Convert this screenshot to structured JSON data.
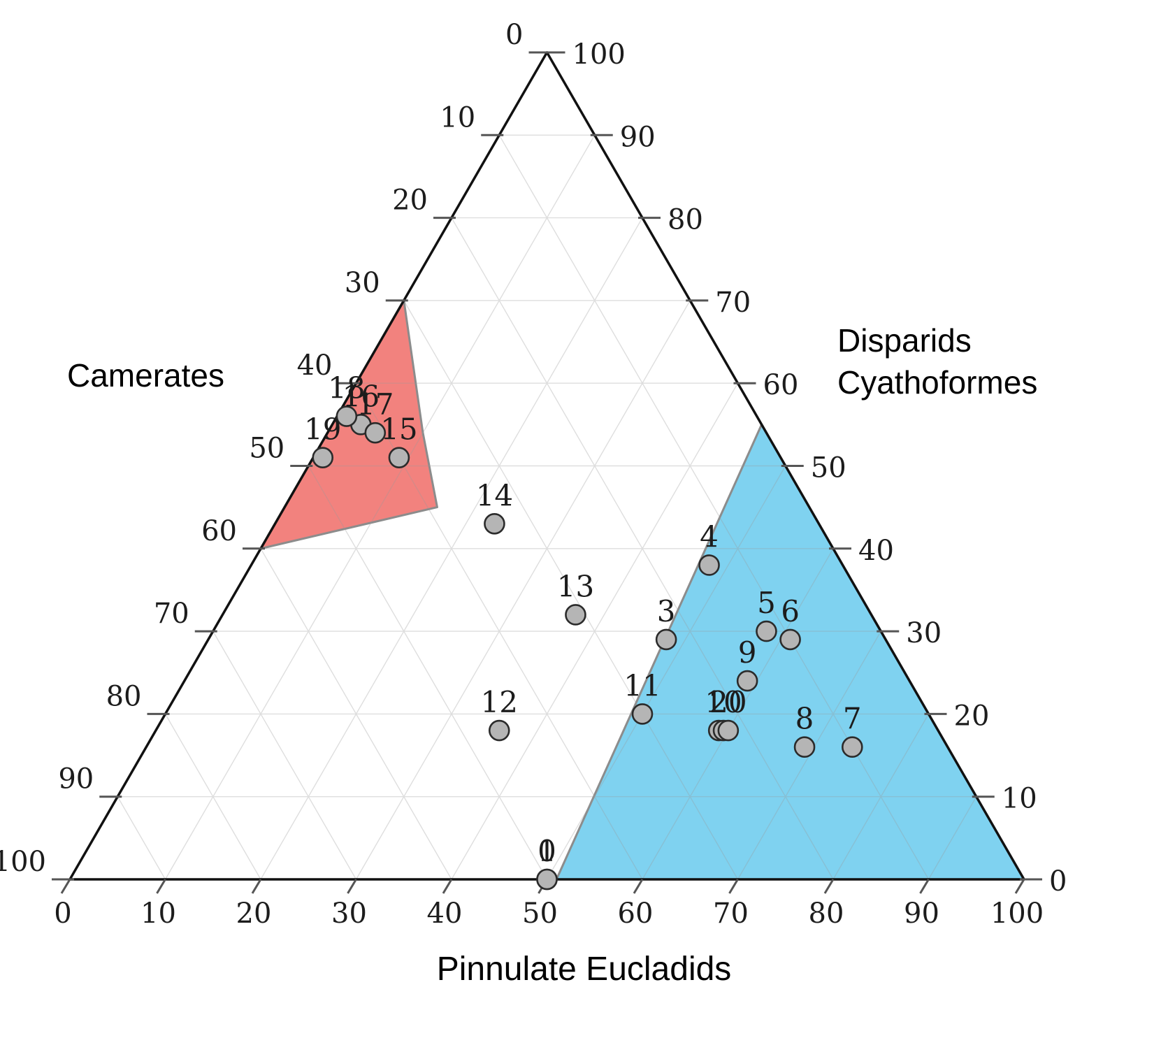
{
  "chart_data": {
    "type": "scatter",
    "variant": "ternary",
    "axes": {
      "left": {
        "label": "Camerates",
        "min": 0,
        "max": 100,
        "tick_step": 10,
        "ticks": [
          0,
          10,
          20,
          30,
          40,
          50,
          60,
          70,
          80,
          90,
          100
        ]
      },
      "right": {
        "label": "Disparids\nCyathoformes",
        "min": 0,
        "max": 100,
        "tick_step": 10,
        "ticks": [
          100,
          90,
          80,
          70,
          60,
          50,
          40,
          30,
          20,
          10,
          0
        ]
      },
      "bottom": {
        "label": "Pinnulate Eucladids",
        "min": 0,
        "max": 100,
        "tick_step": 10,
        "ticks": [
          0,
          10,
          20,
          30,
          40,
          50,
          60,
          70,
          80,
          90,
          100
        ]
      }
    },
    "grid": {
      "show": true,
      "step": 10,
      "color": "#9a9a9a",
      "opacity": 0.32
    },
    "regions": [
      {
        "name": "camerates-region",
        "fill": "#F2827E",
        "stroke": "#8C8C8C",
        "vertices_cdp": [
          [
            30,
            70,
            0
          ],
          [
            36,
            54,
            10
          ],
          [
            39,
            45,
            16
          ],
          [
            60,
            40,
            0
          ]
        ]
      },
      {
        "name": "disparids-region",
        "fill": "#7FD2F0",
        "stroke": "#8C8C8C",
        "vertices_cdp": [
          [
            0,
            55,
            45
          ],
          [
            49,
            0,
            51
          ],
          [
            0,
            0,
            100
          ]
        ]
      }
    ],
    "points": [
      {
        "label": "0",
        "camerates": 50,
        "disparids": 0,
        "pinnulate": 50
      },
      {
        "label": "1",
        "camerates": 50,
        "disparids": 0,
        "pinnulate": 50
      },
      {
        "label": "2",
        "camerates": 23,
        "disparids": 18,
        "pinnulate": 59
      },
      {
        "label": "3",
        "camerates": 23,
        "disparids": 29,
        "pinnulate": 48
      },
      {
        "label": "4",
        "camerates": 14,
        "disparids": 38,
        "pinnulate": 48
      },
      {
        "label": "5",
        "camerates": 12,
        "disparids": 30,
        "pinnulate": 58
      },
      {
        "label": "6",
        "camerates": 10,
        "disparids": 29,
        "pinnulate": 61
      },
      {
        "label": "7",
        "camerates": 10,
        "disparids": 16,
        "pinnulate": 74
      },
      {
        "label": "8",
        "camerates": 15,
        "disparids": 16,
        "pinnulate": 69
      },
      {
        "label": "9",
        "camerates": 17,
        "disparids": 24,
        "pinnulate": 59
      },
      {
        "label": "10",
        "camerates": 22.5,
        "disparids": 18,
        "pinnulate": 59.5
      },
      {
        "label": "11",
        "camerates": 30,
        "disparids": 20,
        "pinnulate": 50
      },
      {
        "label": "12",
        "camerates": 46,
        "disparids": 18,
        "pinnulate": 36
      },
      {
        "label": "13",
        "camerates": 31,
        "disparids": 32,
        "pinnulate": 37
      },
      {
        "label": "14",
        "camerates": 34,
        "disparids": 43,
        "pinnulate": 23
      },
      {
        "label": "15",
        "camerates": 40,
        "disparids": 51,
        "pinnulate": 9
      },
      {
        "label": "16",
        "camerates": 42,
        "disparids": 55,
        "pinnulate": 3
      },
      {
        "label": "17",
        "camerates": 41,
        "disparids": 54,
        "pinnulate": 5
      },
      {
        "label": "18",
        "camerates": 43,
        "disparids": 56,
        "pinnulate": 1
      },
      {
        "label": "19",
        "camerates": 48,
        "disparids": 51,
        "pinnulate": 1
      },
      {
        "label": "20",
        "camerates": 22,
        "disparids": 18,
        "pinnulate": 60
      }
    ],
    "point_style": {
      "fill": "#B5B5B5",
      "stroke": "#2B2B2B",
      "radius": 14
    }
  }
}
